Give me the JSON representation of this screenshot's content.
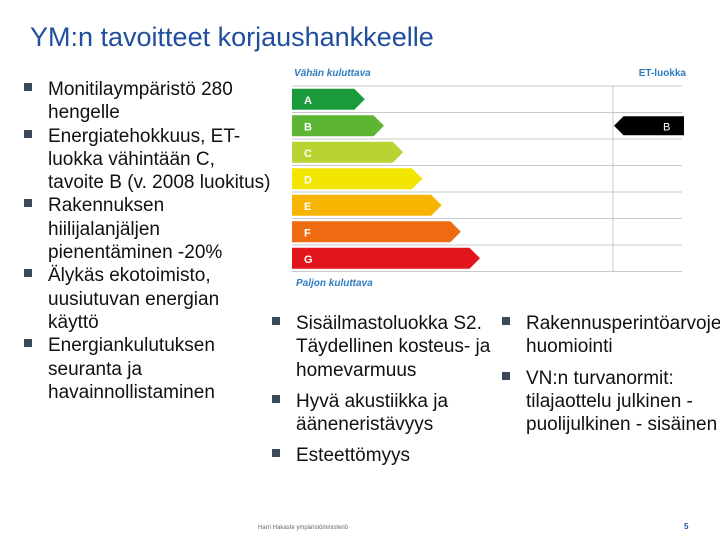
{
  "title": "YM:n tavoitteet korjaushankkeelle",
  "column1": [
    "Monitilaympäristö 280 hengelle",
    "Energiatehokkuus, ET-luokka vähintään C, tavoite B (v. 2008 luokitus)",
    "Rakennuksen hiilijalanjäljen pienentäminen -20%",
    "Älykäs ekotoimisto, uusiutuvan energian käyttö",
    "Energiankulutuksen seuranta ja havainnollistaminen"
  ],
  "column2": [
    "Sisäilmastoluokka S2. Täydellinen kosteus- ja homevarmuus",
    "Hyvä akustiikka ja ääneneristävyys",
    "Esteettömyys"
  ],
  "column3": [
    "Rakennusperintöarvojen huomiointi",
    "VN:n turvanormit: tilajaottelu julkinen - puolijulkinen - sisäinen"
  ],
  "chart": {
    "top_label": "Vähän kuluttava",
    "right_label": "ET-luokka",
    "bottom_label": "Paljon kuluttava",
    "classes": [
      {
        "letter": "A",
        "color": "#1a9a3a",
        "length": 0.22
      },
      {
        "letter": "B",
        "color": "#5db534",
        "length": 0.3
      },
      {
        "letter": "C",
        "color": "#b8d433",
        "length": 0.38
      },
      {
        "letter": "D",
        "color": "#f2e500",
        "length": 0.46
      },
      {
        "letter": "E",
        "color": "#f6b400",
        "length": 0.54
      },
      {
        "letter": "F",
        "color": "#ee6b12",
        "length": 0.62
      },
      {
        "letter": "G",
        "color": "#e2141c",
        "length": 0.7
      }
    ],
    "indicator": "B"
  },
  "footer": "Harri Hakaste ympäristöministeriö",
  "page_number": "5"
}
